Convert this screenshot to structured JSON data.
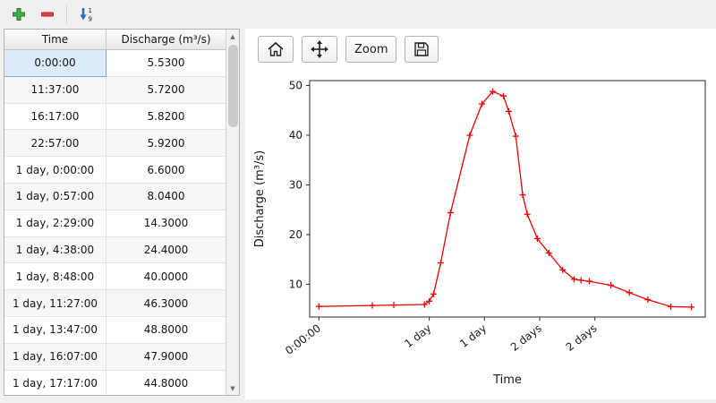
{
  "toolbar": {
    "buttons": [
      {
        "id": "add-row",
        "icon": "plus-icon"
      },
      {
        "id": "remove-row",
        "icon": "minus-icon"
      },
      {
        "id": "sort-rows",
        "icon": "sort-numeric-ascending-icon",
        "digit_top": "1",
        "digit_bottom": "9"
      }
    ]
  },
  "table": {
    "headers": [
      "Time",
      "Discharge (m³/s)"
    ],
    "selected_cell": {
      "row": 0,
      "column": "time"
    },
    "rows": [
      {
        "time": "0:00:00",
        "discharge": "5.5300"
      },
      {
        "time": "11:37:00",
        "discharge": "5.7200"
      },
      {
        "time": "16:17:00",
        "discharge": "5.8200"
      },
      {
        "time": "22:57:00",
        "discharge": "5.9200"
      },
      {
        "time": "1 day, 0:00:00",
        "discharge": "6.6000"
      },
      {
        "time": "1 day, 0:57:00",
        "discharge": "8.0400"
      },
      {
        "time": "1 day, 2:29:00",
        "discharge": "14.3000"
      },
      {
        "time": "1 day, 4:38:00",
        "discharge": "24.4000"
      },
      {
        "time": "1 day, 8:48:00",
        "discharge": "40.0000"
      },
      {
        "time": "1 day, 11:27:00",
        "discharge": "46.3000"
      },
      {
        "time": "1 day, 13:47:00",
        "discharge": "48.8000"
      },
      {
        "time": "1 day, 16:07:00",
        "discharge": "47.9000"
      },
      {
        "time": "1 day, 17:17:00",
        "discharge": "44.8000"
      }
    ]
  },
  "nav": {
    "home_icon": "home-icon",
    "pan_icon": "pan-arrows-icon",
    "zoom_label": "Zoom",
    "save_icon": "save-floppy-icon"
  },
  "chart_data": {
    "type": "line",
    "title": "",
    "xlabel": "Time",
    "ylabel": "Discharge (m³/s)",
    "series_color": "#f00000",
    "marker": "plus",
    "grid": false,
    "xlim_hours": [
      -2,
      84
    ],
    "ylim": [
      3.4,
      51.0
    ],
    "yticks": [
      10,
      20,
      30,
      40,
      50
    ],
    "xticks": [
      {
        "hours": 0,
        "label": "0:00:00"
      },
      {
        "hours": 24,
        "label": "1 day"
      },
      {
        "hours": 36,
        "label": "1 day"
      },
      {
        "hours": 48,
        "label": "2 days"
      },
      {
        "hours": 60,
        "label": "2 days"
      }
    ],
    "points": [
      {
        "h": 0.0,
        "v": 5.53
      },
      {
        "h": 11.62,
        "v": 5.72
      },
      {
        "h": 16.28,
        "v": 5.82
      },
      {
        "h": 22.95,
        "v": 5.92
      },
      {
        "h": 24.0,
        "v": 6.6
      },
      {
        "h": 24.95,
        "v": 8.04
      },
      {
        "h": 26.48,
        "v": 14.3
      },
      {
        "h": 28.63,
        "v": 24.4
      },
      {
        "h": 32.8,
        "v": 40.0
      },
      {
        "h": 35.45,
        "v": 46.3
      },
      {
        "h": 37.78,
        "v": 48.8
      },
      {
        "h": 40.12,
        "v": 47.9
      },
      {
        "h": 41.28,
        "v": 44.8
      },
      {
        "h": 42.8,
        "v": 39.8
      },
      {
        "h": 44.3,
        "v": 28.0
      },
      {
        "h": 45.3,
        "v": 24.1
      },
      {
        "h": 47.5,
        "v": 19.2
      },
      {
        "h": 50.0,
        "v": 16.3
      },
      {
        "h": 53.0,
        "v": 12.9
      },
      {
        "h": 55.5,
        "v": 11.0
      },
      {
        "h": 57.0,
        "v": 10.8
      },
      {
        "h": 58.8,
        "v": 10.6
      },
      {
        "h": 63.5,
        "v": 9.8
      },
      {
        "h": 67.5,
        "v": 8.3
      },
      {
        "h": 71.5,
        "v": 6.9
      },
      {
        "h": 76.5,
        "v": 5.5
      },
      {
        "h": 81.0,
        "v": 5.4
      }
    ]
  }
}
